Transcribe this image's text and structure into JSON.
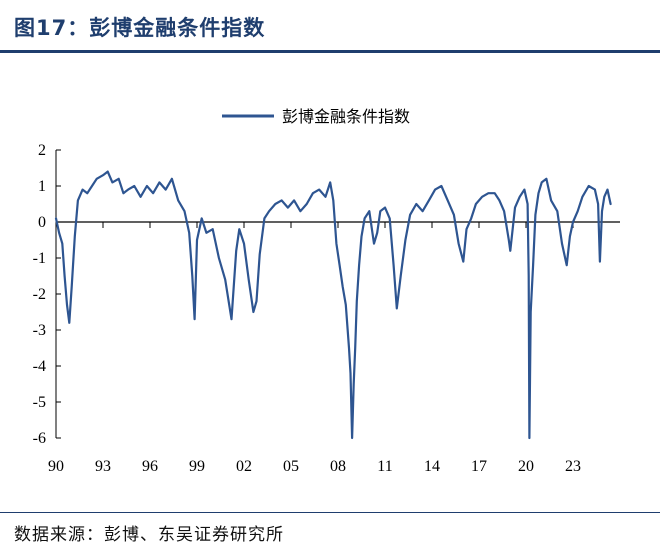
{
  "figure": {
    "title": "图17：彭博金融条件指数",
    "source": "数据来源：彭博、东吴证券研究所"
  },
  "chart_data": {
    "type": "line",
    "title": "",
    "xlabel": "",
    "ylabel": "",
    "ylim": [
      -6,
      2
    ],
    "xlim": [
      1990,
      2026
    ],
    "yticks": [
      2,
      1,
      0,
      -1,
      -2,
      -3,
      -4,
      -5,
      -6
    ],
    "xtick_labels": [
      "90",
      "93",
      "96",
      "99",
      "02",
      "05",
      "08",
      "11",
      "14",
      "17",
      "20",
      "23"
    ],
    "xtick_years": [
      1990,
      1993,
      1996,
      1999,
      2002,
      2005,
      2008,
      2011,
      2014,
      2017,
      2020,
      2023
    ],
    "legend": {
      "position": "top-center",
      "entries": [
        "彭博金融条件指数"
      ]
    },
    "grid": false,
    "series": [
      {
        "name": "彭博金融条件指数",
        "color": "#2e5591",
        "x": [
          1990.0,
          1990.2,
          1990.4,
          1990.55,
          1990.7,
          1990.85,
          1991.0,
          1991.2,
          1991.4,
          1991.7,
          1992.0,
          1992.3,
          1992.6,
          1993.0,
          1993.3,
          1993.6,
          1994.0,
          1994.3,
          1994.6,
          1995.0,
          1995.4,
          1995.8,
          1996.2,
          1996.6,
          1997.0,
          1997.4,
          1997.8,
          1998.2,
          1998.5,
          1998.7,
          1998.85,
          1999.0,
          1999.3,
          1999.6,
          2000.0,
          2000.4,
          2000.8,
          2001.2,
          2001.5,
          2001.7,
          2002.0,
          2002.3,
          2002.6,
          2002.8,
          2003.0,
          2003.3,
          2003.6,
          2004.0,
          2004.4,
          2004.8,
          2005.2,
          2005.6,
          2006.0,
          2006.4,
          2006.8,
          2007.2,
          2007.5,
          2007.7,
          2007.9,
          2008.1,
          2008.3,
          2008.5,
          2008.7,
          2008.8,
          2008.9,
          2009.0,
          2009.1,
          2009.2,
          2009.35,
          2009.5,
          2009.7,
          2010.0,
          2010.3,
          2010.5,
          2010.7,
          2011.0,
          2011.3,
          2011.55,
          2011.75,
          2012.0,
          2012.3,
          2012.6,
          2013.0,
          2013.4,
          2013.8,
          2014.2,
          2014.6,
          2015.0,
          2015.4,
          2015.7,
          2016.0,
          2016.2,
          2016.5,
          2016.8,
          2017.2,
          2017.6,
          2018.0,
          2018.3,
          2018.6,
          2018.9,
          2019.0,
          2019.3,
          2019.6,
          2019.9,
          2020.1,
          2020.17,
          2020.22,
          2020.3,
          2020.45,
          2020.6,
          2020.8,
          2021.0,
          2021.3,
          2021.6,
          2022.0,
          2022.3,
          2022.6,
          2022.8,
          2023.0,
          2023.3,
          2023.6,
          2024.0,
          2024.4,
          2024.6,
          2024.72,
          2024.85,
          2025.0,
          2025.2,
          2025.4
        ],
        "values": [
          0.1,
          -0.3,
          -0.6,
          -1.5,
          -2.3,
          -2.8,
          -1.8,
          -0.4,
          0.6,
          0.9,
          0.8,
          1.0,
          1.2,
          1.3,
          1.4,
          1.1,
          1.2,
          0.8,
          0.9,
          1.0,
          0.7,
          1.0,
          0.8,
          1.1,
          0.9,
          1.2,
          0.6,
          0.3,
          -0.3,
          -1.5,
          -2.7,
          -0.5,
          0.1,
          -0.3,
          -0.2,
          -1.0,
          -1.6,
          -2.7,
          -0.8,
          -0.2,
          -0.6,
          -1.6,
          -2.5,
          -2.2,
          -0.9,
          0.1,
          0.3,
          0.5,
          0.6,
          0.4,
          0.6,
          0.3,
          0.5,
          0.8,
          0.9,
          0.7,
          1.1,
          0.6,
          -0.6,
          -1.2,
          -1.8,
          -2.3,
          -3.5,
          -4.2,
          -6.0,
          -4.5,
          -3.5,
          -2.2,
          -1.2,
          -0.4,
          0.1,
          0.3,
          -0.6,
          -0.3,
          0.3,
          0.4,
          0.1,
          -1.2,
          -2.4,
          -1.5,
          -0.5,
          0.2,
          0.5,
          0.3,
          0.6,
          0.9,
          1.0,
          0.6,
          0.2,
          -0.6,
          -1.1,
          -0.2,
          0.1,
          0.5,
          0.7,
          0.8,
          0.8,
          0.6,
          0.3,
          -0.5,
          -0.8,
          0.4,
          0.7,
          0.9,
          0.5,
          -1.5,
          -6.0,
          -2.5,
          -1.2,
          0.2,
          0.8,
          1.1,
          1.2,
          0.6,
          0.3,
          -0.6,
          -1.2,
          -0.4,
          0.0,
          0.3,
          0.7,
          1.0,
          0.9,
          0.5,
          -1.1,
          0.3,
          0.7,
          0.9,
          0.5
        ]
      }
    ]
  }
}
